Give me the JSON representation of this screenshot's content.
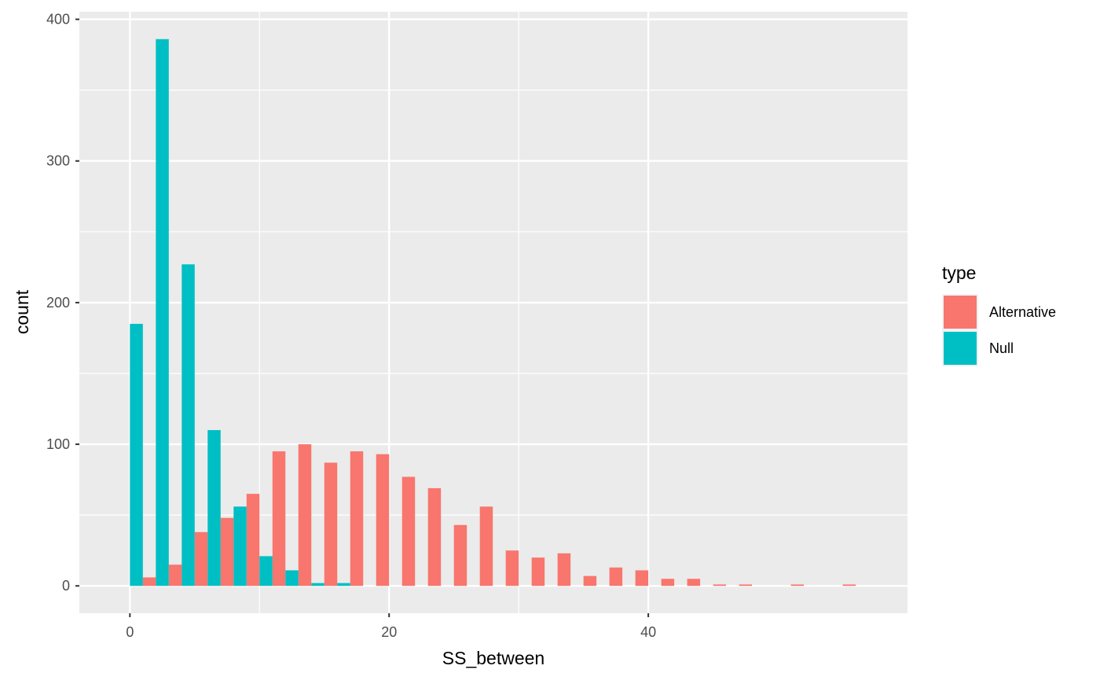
{
  "chart_data": {
    "type": "bar",
    "title": "",
    "xlabel": "SS_between",
    "ylabel": "count",
    "xlim": [
      -3.9,
      60.0
    ],
    "ylim": [
      -19.3,
      405.3
    ],
    "x_ticks": [
      0,
      20,
      40
    ],
    "y_ticks": [
      0,
      100,
      200,
      300,
      400
    ],
    "grid": true,
    "legend_position": "right",
    "legend_title": "type",
    "bin_width": 2,
    "series": [
      {
        "name": "Alternative",
        "color": "#F8766D",
        "x": [
          0,
          2,
          4,
          6,
          8,
          10,
          12,
          14,
          16,
          18,
          20,
          22,
          24,
          26,
          28,
          30,
          32,
          34,
          36,
          38,
          40,
          42,
          44,
          46,
          48,
          50,
          52,
          54,
          56
        ],
        "values": [
          0,
          6,
          15,
          38,
          48,
          65,
          95,
          100,
          87,
          95,
          93,
          77,
          69,
          43,
          56,
          25,
          20,
          23,
          7,
          13,
          11,
          5,
          5,
          1,
          1,
          0,
          1,
          0,
          1
        ]
      },
      {
        "name": "Null",
        "color": "#00BFC4",
        "x": [
          0,
          2,
          4,
          6,
          8,
          10,
          12,
          14,
          16,
          18,
          20,
          22,
          24,
          26,
          28,
          30,
          32,
          34,
          36,
          38,
          40,
          42,
          44,
          46,
          48,
          50,
          52,
          54,
          56
        ],
        "values": [
          185,
          386,
          227,
          110,
          56,
          21,
          11,
          2,
          2,
          0,
          0,
          0,
          0,
          0,
          0,
          0,
          0,
          0,
          0,
          0,
          0,
          0,
          0,
          0,
          0,
          0,
          0,
          0,
          0
        ]
      }
    ]
  }
}
